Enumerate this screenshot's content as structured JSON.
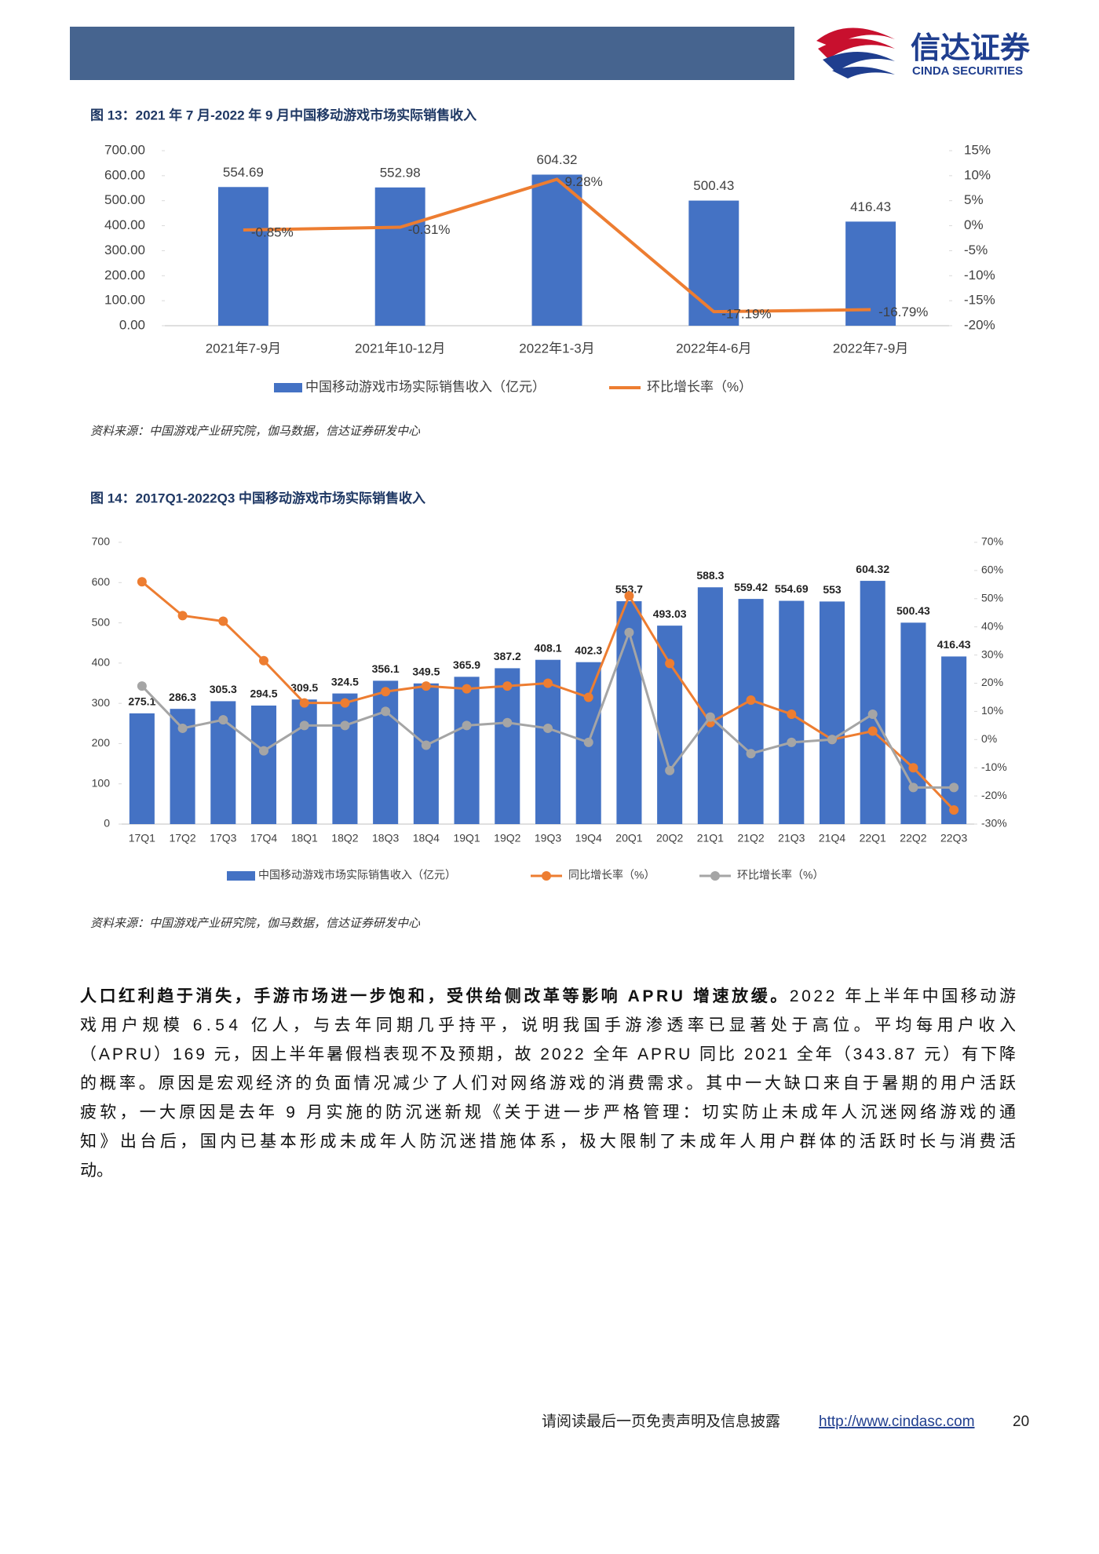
{
  "header": {
    "logo_cn": "信达证券",
    "logo_en": "CINDA SECURITIES"
  },
  "chart_data": [
    {
      "type": "bar_line",
      "title": "图 13：2021 年 7 月-2022 年 9 月中国移动游戏市场实际销售收入",
      "categories": [
        "2021年7-9月",
        "2021年10-12月",
        "2022年1-3月",
        "2022年4-6月",
        "2022年7-9月"
      ],
      "series": [
        {
          "name": "中国移动游戏市场实际销售收入（亿元）",
          "color": "#4472c4",
          "values": [
            554.69,
            552.98,
            604.32,
            500.43,
            416.43
          ]
        },
        {
          "name": "环比增长率（%）",
          "color": "#ed7d31",
          "axis": "y2",
          "values": [
            -0.85,
            -0.31,
            9.28,
            -17.19,
            -16.79
          ],
          "value_labels": [
            "-0.85%",
            "-0.31%",
            "9.28%",
            "-17.19%",
            "-16.79%"
          ]
        }
      ],
      "ylim": [
        0,
        700
      ],
      "yticks": [
        {
          "value": 0,
          "label": "0.00"
        },
        {
          "value": 100,
          "label": "100.00"
        },
        {
          "value": 200,
          "label": "200.00"
        },
        {
          "value": 300,
          "label": "300.00"
        },
        {
          "value": 400,
          "label": "400.00"
        },
        {
          "value": 500,
          "label": "500.00"
        },
        {
          "value": 600,
          "label": "600.00"
        },
        {
          "value": 700,
          "label": "700.00"
        }
      ],
      "y2lim": [
        -20,
        15
      ],
      "y2ticks": [
        {
          "value": -20,
          "label": "-20%"
        },
        {
          "value": -15,
          "label": "-15%"
        },
        {
          "value": -10,
          "label": "-10%"
        },
        {
          "value": -5,
          "label": "-5%"
        },
        {
          "value": 0,
          "label": "0%"
        },
        {
          "value": 5,
          "label": "5%"
        },
        {
          "value": 10,
          "label": "10%"
        },
        {
          "value": 15,
          "label": "15%"
        }
      ],
      "markers": false,
      "source": "资料来源：中国游戏产业研究院，伽马数据，信达证券研发中心"
    },
    {
      "type": "bar_line",
      "title": "图 14：2017Q1-2022Q3 中国移动游戏市场实际销售收入",
      "categories": [
        "17Q1",
        "17Q2",
        "17Q3",
        "17Q4",
        "18Q1",
        "18Q2",
        "18Q3",
        "18Q4",
        "19Q1",
        "19Q2",
        "19Q3",
        "19Q4",
        "20Q1",
        "20Q2",
        "21Q1",
        "21Q2",
        "21Q3",
        "21Q4",
        "22Q1",
        "22Q2",
        "22Q3"
      ],
      "series": [
        {
          "name": "中国移动游戏市场实际销售收入（亿元）",
          "color": "#4472c4",
          "values": [
            275.1,
            286.3,
            305.3,
            294.5,
            309.5,
            324.5,
            356.1,
            349.5,
            365.9,
            387.2,
            408.1,
            402.3,
            553.7,
            493.03,
            588.3,
            559.42,
            554.69,
            553,
            604.32,
            500.43,
            416.43
          ]
        },
        {
          "name": "同比增长率（%）",
          "color": "#ed7d31",
          "axis": "y2",
          "values": [
            56,
            44,
            42,
            28,
            13,
            13,
            17,
            19,
            18,
            19,
            20,
            15,
            51,
            27,
            6,
            14,
            9,
            0,
            3,
            -10,
            -25
          ]
        },
        {
          "name": "环比增长率（%）",
          "color": "#a5a5a5",
          "axis": "y2",
          "values": [
            19,
            4,
            7,
            -4,
            5,
            5,
            10,
            -2,
            5,
            6,
            4,
            -1,
            38,
            -11,
            8,
            -5,
            -1,
            0,
            9,
            -17,
            -17
          ]
        }
      ],
      "ylim": [
        0,
        700
      ],
      "yticks": [
        0,
        100,
        200,
        300,
        400,
        500,
        600,
        700
      ],
      "y2lim": [
        -30,
        70
      ],
      "y2ticks": [
        {
          "value": -30,
          "label": "-30%"
        },
        {
          "value": -20,
          "label": "-20%"
        },
        {
          "value": -10,
          "label": "-10%"
        },
        {
          "value": 0,
          "label": "0%"
        },
        {
          "value": 10,
          "label": "10%"
        },
        {
          "value": 20,
          "label": "20%"
        },
        {
          "value": 30,
          "label": "30%"
        },
        {
          "value": 40,
          "label": "40%"
        },
        {
          "value": 50,
          "label": "50%"
        },
        {
          "value": 60,
          "label": "60%"
        },
        {
          "value": 70,
          "label": "70%"
        }
      ],
      "markers": true,
      "source": "资料来源：中国游戏产业研究院，伽马数据，信达证券研发中心"
    }
  ],
  "paragraph": {
    "lead": "人口红利趋于消失，手游市场进一步饱和，受供给侧改革等影响 APRU 增速放缓。",
    "lines": [
      "2022 年上半年中国移动游",
      "戏用户规模 6.54 亿人，与去年同期几乎持平，说明我国手游渗透率已显著处于高位。平均每用户收入",
      "（APRU）169 元，因上半年暑假档表现不及预期，故 2022 全年 APRU 同比 2021 全年（343.87 元）有下降",
      "的概率。原因是宏观经济的负面情况减少了人们对网络游戏的消费需求。其中一大缺口来自于暑期的用户活跃",
      "疲软，一大原因是去年 9 月实施的防沉迷新规《关于进一步严格管理：切实防止未成年人沉迷网络游戏的通",
      "知》出台后，国内已基本形成未成年人防沉迷措施体系，极大限制了未成年人用户群体的活跃时长与消费活",
      "动。"
    ]
  },
  "footer": {
    "disclaimer": "请阅读最后一页免责声明及信息披露",
    "url": "http://www.cindasc.com",
    "page": "20"
  }
}
